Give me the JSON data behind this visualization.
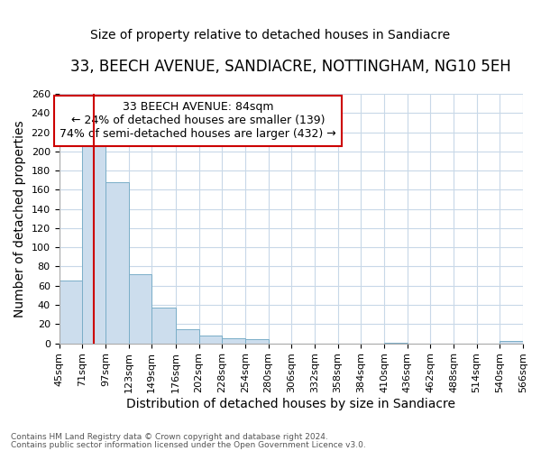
{
  "title": "33, BEECH AVENUE, SANDIACRE, NOTTINGHAM, NG10 5EH",
  "subtitle": "Size of property relative to detached houses in Sandiacre",
  "xlabel": "Distribution of detached houses by size in Sandiacre",
  "ylabel": "Number of detached properties",
  "footnote1": "Contains HM Land Registry data © Crown copyright and database right 2024.",
  "footnote2": "Contains public sector information licensed under the Open Government Licence v3.0.",
  "annotation_line1": "33 BEECH AVENUE: 84sqm",
  "annotation_line2": "← 24% of detached houses are smaller (139)",
  "annotation_line3": "74% of semi-detached houses are larger (432) →",
  "property_size": 84,
  "bar_color": "#ccdded",
  "bar_edge_color": "#7aaec8",
  "vline_color": "#cc0000",
  "annotation_box_color": "#cc0000",
  "bins": [
    45,
    71,
    97,
    123,
    149,
    176,
    202,
    228,
    254,
    280,
    306,
    332,
    358,
    384,
    410,
    436,
    462,
    488,
    514,
    540,
    566
  ],
  "counts": [
    65,
    207,
    168,
    72,
    37,
    15,
    8,
    5,
    4,
    0,
    0,
    0,
    0,
    0,
    1,
    0,
    0,
    0,
    0,
    2
  ],
  "ylim": [
    0,
    260
  ],
  "yticks": [
    0,
    20,
    40,
    60,
    80,
    100,
    120,
    140,
    160,
    180,
    200,
    220,
    240,
    260
  ],
  "background_color": "#ffffff",
  "grid_color": "#c8d8e8",
  "title_fontsize": 12,
  "subtitle_fontsize": 10,
  "tick_label_fontsize": 8,
  "axis_label_fontsize": 10,
  "annotation_fontsize": 9
}
